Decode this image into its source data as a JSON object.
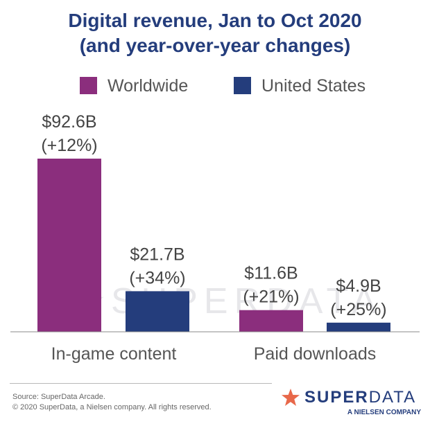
{
  "chart_data": {
    "type": "bar",
    "title_line1": "Digital revenue, Jan to Oct 2020",
    "title_line2": "(and year-over-year changes)",
    "categories": [
      "In-game content",
      "Paid downloads"
    ],
    "series": [
      {
        "name": "Worldwide",
        "color": "#8b2e7d",
        "values": [
          92.6,
          11.6
        ],
        "labels": [
          "$92.6B",
          "$11.6B"
        ],
        "changes": [
          "(+12%)",
          "(+21%)"
        ]
      },
      {
        "name": "United States",
        "color": "#243d7c",
        "values": [
          21.7,
          4.9
        ],
        "labels": [
          "$21.7B",
          "$4.9B"
        ],
        "changes": [
          "(+34%)",
          "(+25%)"
        ]
      }
    ],
    "ylabel": "",
    "ylim": [
      0,
      92.6
    ],
    "grid": false,
    "legend_position": "top"
  },
  "watermark": "SUPERDATA",
  "footer": {
    "source": "Source: SuperData Arcade.",
    "copyright": "© 2020 SuperData, a Nielsen company. All rights reserved."
  },
  "brand": {
    "name_part1": "SUPER",
    "name_part2": "DATA",
    "tagline": "A NIELSEN COMPANY",
    "star_color": "#e8684a",
    "text_color": "#243d7c"
  }
}
